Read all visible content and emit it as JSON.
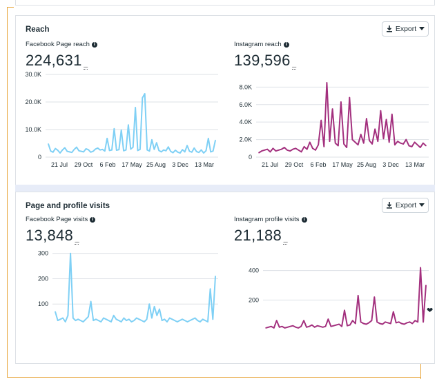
{
  "reach": {
    "title": "Reach",
    "export_label": "Export",
    "facebook": {
      "label": "Facebook Page reach",
      "value": "224,631",
      "dashes": "---"
    },
    "instagram": {
      "label": "Instagram reach",
      "value": "139,596",
      "dashes": "---"
    }
  },
  "visits": {
    "title": "Page and profile visits",
    "export_label": "Export",
    "facebook": {
      "label": "Facebook Page visits",
      "value": "13,848",
      "dashes": "---"
    },
    "instagram": {
      "label": "Instagram profile visits",
      "value": "21,188",
      "dashes": "---"
    }
  },
  "colors": {
    "facebook": "#7fd0f5",
    "instagram": "#a3307e",
    "frame": "#e8a53a"
  },
  "icons": {
    "export": "download-icon",
    "dropdown": "caret-down-icon",
    "info": "info-icon",
    "cursor": "heart-icon"
  },
  "chart_data": [
    {
      "type": "line",
      "series": [
        {
          "values": [
            4800,
            2200,
            1800,
            3100,
            2500,
            1500,
            2600,
            3400,
            2100,
            1900,
            1700,
            2800,
            3600,
            2300,
            2100,
            1900,
            3000,
            2700,
            1800,
            2100,
            2900,
            3300,
            2600,
            2800,
            2200,
            6800,
            2400,
            2600,
            10300,
            2500,
            2700,
            9800,
            2300,
            2600,
            11700,
            2900,
            3600,
            18000,
            2400,
            2800,
            21500,
            23000,
            2600,
            2200,
            6300,
            2800,
            5200,
            2400,
            1900,
            2600,
            2300,
            3700,
            2100,
            1600,
            2500,
            1800,
            1500,
            2700,
            1900,
            4200,
            2100,
            1800,
            3300,
            2000,
            1700,
            2600,
            1500,
            2300,
            6800,
            1900,
            2200,
            6100
          ]
        }
      ],
      "x_ticks": [
        "21 Jul",
        "29 Oct",
        "6 Feb",
        "17 May",
        "25 Aug",
        "3 Dec",
        "13 Mar"
      ],
      "y_ticks": [
        "0",
        "10.0K",
        "20.0K",
        "30.0K"
      ],
      "ylim": [
        0,
        30000
      ]
    },
    {
      "type": "line",
      "series": [
        {
          "values": [
            500,
            700,
            800,
            900,
            600,
            1000,
            700,
            800,
            900,
            1100,
            800,
            700,
            900,
            1000,
            800,
            600,
            1200,
            900,
            1700,
            1000,
            800,
            1400,
            4200,
            1200,
            8500,
            1800,
            5500,
            1600,
            1300,
            6300,
            1500,
            1100,
            6800,
            2000,
            1700,
            1400,
            2600,
            1600,
            4400,
            1900,
            1500,
            3200,
            1800,
            5300,
            2100,
            4300,
            1700,
            4900,
            1400,
            1800,
            1600,
            1500,
            2000,
            1300,
            1200,
            1700,
            1400,
            1100,
            1600,
            1300
          ]
        }
      ],
      "x_ticks": [
        "21 Jul",
        "29 Oct",
        "6 Feb",
        "17 May",
        "25 Aug",
        "3 Dec",
        "13 Mar"
      ],
      "y_ticks": [
        "0",
        "2.0K",
        "4.0K",
        "6.0K",
        "8.0K"
      ],
      "ylim": [
        0,
        8500
      ]
    },
    {
      "type": "line",
      "series": [
        {
          "values": [
            70,
            35,
            40,
            45,
            30,
            55,
            300,
            45,
            35,
            40,
            35,
            30,
            40,
            50,
            110,
            35,
            40,
            35,
            30,
            45,
            40,
            35,
            30,
            55,
            40,
            35,
            30,
            45,
            35,
            40,
            30,
            35,
            45,
            40,
            35,
            30,
            40,
            100,
            45,
            90,
            55,
            80,
            35,
            40,
            30,
            45,
            40,
            35,
            30,
            35,
            40,
            35,
            30,
            35,
            40,
            45,
            35,
            30,
            40,
            35,
            30,
            160,
            40,
            210
          ]
        }
      ],
      "y_ticks": [
        "100",
        "200",
        "300"
      ],
      "ylim": [
        0,
        310
      ]
    },
    {
      "type": "line",
      "series": [
        {
          "values": [
            10,
            15,
            20,
            10,
            60,
            15,
            20,
            10,
            15,
            20,
            25,
            15,
            10,
            20,
            60,
            15,
            20,
            30,
            15,
            25,
            20,
            15,
            20,
            70,
            20,
            25,
            30,
            35,
            20,
            130,
            25,
            30,
            60,
            40,
            230,
            50,
            40,
            35,
            45,
            60,
            220,
            50,
            40,
            35,
            50,
            45,
            40,
            120,
            45,
            50,
            40,
            35,
            45,
            50,
            40,
            60,
            50,
            420,
            50,
            300
          ]
        }
      ],
      "y_ticks": [
        "200",
        "400"
      ],
      "ylim": [
        0,
        450
      ]
    }
  ]
}
